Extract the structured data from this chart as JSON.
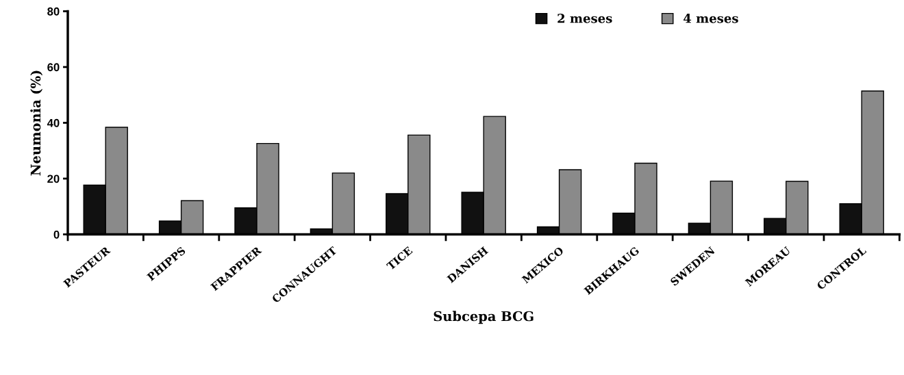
{
  "chart_data": {
    "type": "bar",
    "xlabel": "Subcepa BCG",
    "ylabel": "Neumonia (%)",
    "categories": [
      "PASTEUR",
      "PHIPPS",
      "FRAPPIER",
      "CONNAUGHT",
      "TICE",
      "DANISH",
      "MEXICO",
      "BIRKHAUG",
      "SWEDEN",
      "MOREAU",
      "CONTROL"
    ],
    "series": [
      {
        "name": "2 meses",
        "color": "#111111",
        "values": [
          17.7,
          4.8,
          9.5,
          2.0,
          14.6,
          15.1,
          2.7,
          7.6,
          4.0,
          5.7,
          11.0
        ]
      },
      {
        "name": "4 meses",
        "color": "#8a8a8a",
        "values": [
          38.4,
          12.1,
          32.6,
          22.0,
          35.6,
          42.3,
          23.2,
          25.5,
          19.1,
          19.0,
          51.4
        ]
      }
    ],
    "ylim": [
      0,
      80
    ],
    "yticks": [
      0,
      20,
      40,
      60,
      80
    ],
    "grid": false,
    "legend": "top right"
  }
}
